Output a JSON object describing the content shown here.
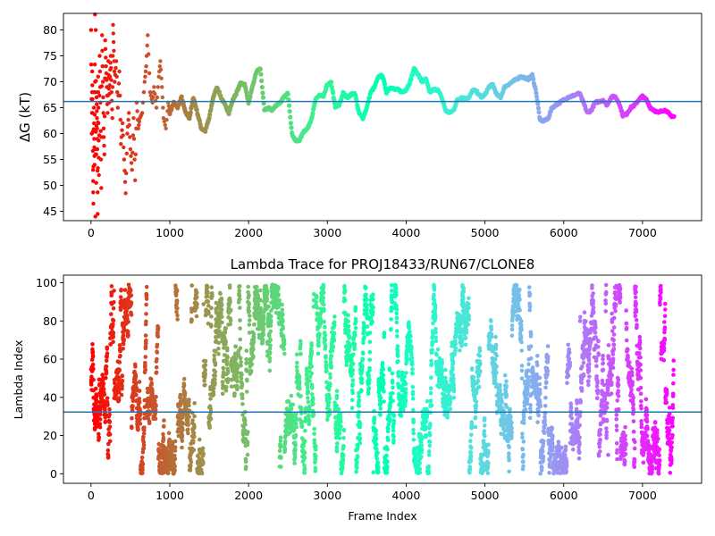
{
  "chart_data": [
    {
      "type": "scatter",
      "title": "",
      "xlabel": "",
      "ylabel": "ΔG (kT)",
      "xlim": [
        -350,
        7750
      ],
      "ylim": [
        43.2,
        83.2
      ],
      "xticks": [
        0,
        1000,
        2000,
        3000,
        4000,
        5000,
        6000,
        7000
      ],
      "yticks": [
        45,
        50,
        55,
        60,
        65,
        70,
        75,
        80
      ],
      "hline": 66.2,
      "hline_color": "#1f77b4",
      "colormap": "rainbow (red at frame 0 to violet at last frame)",
      "points": [
        [
          0,
          80
        ],
        [
          10,
          60
        ],
        [
          15,
          72
        ],
        [
          20,
          64
        ],
        [
          25,
          53
        ],
        [
          30,
          46.5
        ],
        [
          35,
          68
        ],
        [
          40,
          59
        ],
        [
          45,
          54
        ],
        [
          50,
          83
        ],
        [
          55,
          44
        ],
        [
          60,
          80
        ],
        [
          65,
          50.5
        ],
        [
          70,
          67
        ],
        [
          75,
          63
        ],
        [
          80,
          57
        ],
        [
          85,
          44.5
        ],
        [
          90,
          71
        ],
        [
          95,
          62
        ],
        [
          100,
          52
        ],
        [
          110,
          75
        ],
        [
          120,
          66
        ],
        [
          130,
          49.5
        ],
        [
          140,
          79
        ],
        [
          150,
          70
        ],
        [
          160,
          61
        ],
        [
          170,
          56
        ],
        [
          180,
          78
        ],
        [
          190,
          73
        ],
        [
          200,
          69
        ],
        [
          210,
          64
        ],
        [
          220,
          74
        ],
        [
          230,
          66
        ],
        [
          240,
          71
        ],
        [
          250,
          75
        ],
        [
          260,
          68
        ],
        [
          270,
          63
        ],
        [
          280,
          81
        ],
        [
          290,
          76
        ],
        [
          300,
          70
        ],
        [
          320,
          74
        ],
        [
          340,
          65
        ],
        [
          360,
          72
        ],
        [
          380,
          58
        ],
        [
          400,
          62
        ],
        [
          420,
          55
        ],
        [
          440,
          48.5
        ],
        [
          460,
          60
        ],
        [
          480,
          64
        ],
        [
          500,
          57
        ],
        [
          520,
          53
        ],
        [
          540,
          63
        ],
        [
          560,
          51
        ],
        [
          580,
          66
        ],
        [
          600,
          61
        ],
        [
          620,
          63
        ],
        [
          650,
          64
        ],
        [
          680,
          70
        ],
        [
          700,
          73
        ],
        [
          720,
          79
        ],
        [
          750,
          68
        ],
        [
          780,
          66
        ],
        [
          800,
          69
        ],
        [
          830,
          65
        ],
        [
          860,
          71
        ],
        [
          880,
          74
        ],
        [
          900,
          69
        ],
        [
          920,
          63
        ],
        [
          950,
          61
        ],
        [
          980,
          66
        ],
        [
          1000,
          64
        ],
        [
          1050,
          66
        ],
        [
          1100,
          65
        ],
        [
          1150,
          67
        ],
        [
          1200,
          64
        ],
        [
          1250,
          63
        ],
        [
          1300,
          67
        ],
        [
          1350,
          64
        ],
        [
          1400,
          61
        ],
        [
          1450,
          60.5
        ],
        [
          1500,
          63
        ],
        [
          1550,
          67
        ],
        [
          1600,
          69
        ],
        [
          1650,
          67
        ],
        [
          1700,
          65.5
        ],
        [
          1750,
          64
        ],
        [
          1800,
          66.5
        ],
        [
          1850,
          68
        ],
        [
          1900,
          69.8
        ],
        [
          1950,
          69.5
        ],
        [
          2000,
          66
        ],
        [
          2050,
          69
        ],
        [
          2100,
          72
        ],
        [
          2150,
          72.5
        ],
        [
          2200,
          64.5
        ],
        [
          2250,
          65
        ],
        [
          2300,
          64.5
        ],
        [
          2350,
          65.5
        ],
        [
          2400,
          66
        ],
        [
          2450,
          67
        ],
        [
          2500,
          67.8
        ],
        [
          2550,
          60
        ],
        [
          2600,
          58.5
        ],
        [
          2650,
          58.8
        ],
        [
          2700,
          60.5
        ],
        [
          2750,
          61
        ],
        [
          2800,
          63
        ],
        [
          2850,
          66.5
        ],
        [
          2900,
          67.5
        ],
        [
          2950,
          67
        ],
        [
          3000,
          69.5
        ],
        [
          3050,
          69.8
        ],
        [
          3100,
          65
        ],
        [
          3150,
          65.5
        ],
        [
          3200,
          67.8
        ],
        [
          3250,
          67
        ],
        [
          3300,
          67.5
        ],
        [
          3350,
          67.8
        ],
        [
          3400,
          64
        ],
        [
          3450,
          63
        ],
        [
          3500,
          65
        ],
        [
          3550,
          68
        ],
        [
          3600,
          69
        ],
        [
          3650,
          71
        ],
        [
          3700,
          71.2
        ],
        [
          3750,
          68
        ],
        [
          3800,
          69
        ],
        [
          3850,
          68.5
        ],
        [
          3900,
          68.5
        ],
        [
          3950,
          68
        ],
        [
          4000,
          68.5
        ],
        [
          4050,
          70
        ],
        [
          4100,
          72.5
        ],
        [
          4150,
          71.5
        ],
        [
          4200,
          70
        ],
        [
          4250,
          70.5
        ],
        [
          4300,
          68
        ],
        [
          4350,
          68.5
        ],
        [
          4400,
          68.5
        ],
        [
          4450,
          67
        ],
        [
          4500,
          64.5
        ],
        [
          4550,
          64
        ],
        [
          4600,
          64.5
        ],
        [
          4650,
          66.5
        ],
        [
          4700,
          67
        ],
        [
          4750,
          66.8
        ],
        [
          4800,
          67
        ],
        [
          4850,
          68.5
        ],
        [
          4900,
          68
        ],
        [
          4950,
          67
        ],
        [
          5000,
          67.5
        ],
        [
          5050,
          69
        ],
        [
          5100,
          69.5
        ],
        [
          5150,
          67.5
        ],
        [
          5200,
          67
        ],
        [
          5250,
          69
        ],
        [
          5300,
          69.5
        ],
        [
          5350,
          70
        ],
        [
          5400,
          70.5
        ],
        [
          5450,
          71
        ],
        [
          5500,
          70.8
        ],
        [
          5550,
          70.5
        ],
        [
          5600,
          71.3
        ],
        [
          5650,
          68
        ],
        [
          5700,
          62.5
        ],
        [
          5750,
          62.5
        ],
        [
          5800,
          62.8
        ],
        [
          5850,
          65
        ],
        [
          5900,
          65.5
        ],
        [
          5950,
          66
        ],
        [
          6000,
          66.5
        ],
        [
          6050,
          67
        ],
        [
          6100,
          67.2
        ],
        [
          6150,
          67.5
        ],
        [
          6200,
          67.8
        ],
        [
          6250,
          66
        ],
        [
          6300,
          64
        ],
        [
          6350,
          64.5
        ],
        [
          6400,
          66
        ],
        [
          6450,
          66.2
        ],
        [
          6500,
          66.5
        ],
        [
          6550,
          65.5
        ],
        [
          6600,
          67
        ],
        [
          6650,
          67.2
        ],
        [
          6700,
          66
        ],
        [
          6750,
          63.5
        ],
        [
          6800,
          63.8
        ],
        [
          6850,
          65
        ],
        [
          6900,
          65.5
        ],
        [
          6950,
          66.5
        ],
        [
          7000,
          67.2
        ],
        [
          7050,
          66.5
        ],
        [
          7100,
          65
        ],
        [
          7150,
          64.5
        ],
        [
          7200,
          64
        ],
        [
          7250,
          64.5
        ],
        [
          7300,
          64.5
        ],
        [
          7350,
          63.5
        ],
        [
          7400,
          63.3
        ]
      ]
    },
    {
      "type": "scatter",
      "title": "Lambda Trace for PROJ18433/RUN67/CLONE8",
      "xlabel": "Frame Index",
      "ylabel": "Lambda Index",
      "xlim": [
        -350,
        7750
      ],
      "ylim": [
        -5,
        104
      ],
      "xticks": [
        0,
        1000,
        2000,
        3000,
        4000,
        5000,
        6000,
        7000
      ],
      "yticks": [
        0,
        20,
        40,
        60,
        80,
        100
      ],
      "hline": 32.3,
      "hline_color": "#1f77b4",
      "colormap": "rainbow (red at frame 0 to violet at last frame)",
      "x_range": [
        0,
        7400
      ],
      "y_range": [
        0,
        99
      ],
      "point_count": 5200
    }
  ]
}
